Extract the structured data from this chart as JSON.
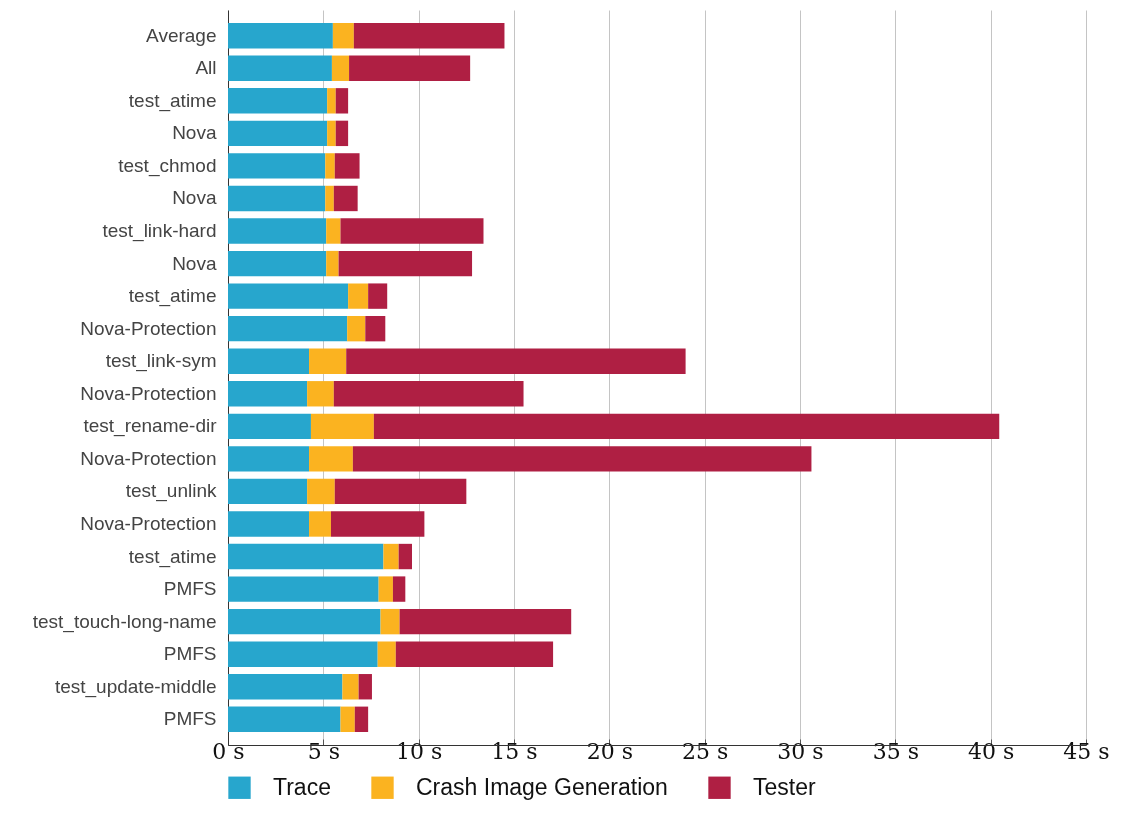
{
  "chart_data": {
    "type": "bar",
    "orientation": "horizontal",
    "stacked": true,
    "categories": [
      "Average",
      "All",
      "test_atime",
      "Nova",
      "test_chmod",
      "Nova",
      "test_link-hard",
      "Nova",
      "test_atime",
      "Nova-Protection",
      "test_link-sym",
      "Nova-Protection",
      "test_rename-dir",
      "Nova-Protection",
      "test_unlink",
      "Nova-Protection",
      "test_atime",
      "PMFS",
      "test_touch-long-name",
      "PMFS",
      "test_update-middle",
      "PMFS"
    ],
    "series": [
      {
        "name": "Trace",
        "color": "#27a6cd",
        "values": [
          5.5,
          5.45,
          5.2,
          5.2,
          5.1,
          5.1,
          5.15,
          5.15,
          6.3,
          6.25,
          4.25,
          4.15,
          4.35,
          4.25,
          4.15,
          4.25,
          8.15,
          7.9,
          8.0,
          7.85,
          6.0,
          5.9
        ]
      },
      {
        "name": "Crash Image Generation",
        "color": "#fbb320",
        "values": [
          1.1,
          0.9,
          0.45,
          0.45,
          0.5,
          0.45,
          0.75,
          0.65,
          1.05,
          0.95,
          1.95,
          1.4,
          3.3,
          2.3,
          1.45,
          1.15,
          0.8,
          0.75,
          1.0,
          0.95,
          0.85,
          0.75
        ]
      },
      {
        "name": "Tester",
        "color": "#af1f43",
        "values": [
          7.9,
          6.35,
          0.65,
          0.65,
          1.3,
          1.25,
          7.5,
          7.0,
          1.0,
          1.05,
          17.8,
          9.95,
          32.8,
          24.05,
          6.9,
          4.9,
          0.7,
          0.65,
          9.0,
          8.25,
          0.7,
          0.7
        ]
      }
    ],
    "xlim": [
      0,
      45
    ],
    "xticks": [
      {
        "value": 0,
        "label": "0 s"
      },
      {
        "value": 5,
        "label": "5 s"
      },
      {
        "value": 10,
        "label": "10 s"
      },
      {
        "value": 15,
        "label": "15 s"
      },
      {
        "value": 20,
        "label": "20 s"
      },
      {
        "value": 25,
        "label": "25 s"
      },
      {
        "value": 30,
        "label": "30 s"
      },
      {
        "value": 35,
        "label": "35 s"
      },
      {
        "value": 40,
        "label": "40 s"
      },
      {
        "value": 45,
        "label": "45 s"
      }
    ],
    "grid": "x",
    "legend": "bottom"
  }
}
